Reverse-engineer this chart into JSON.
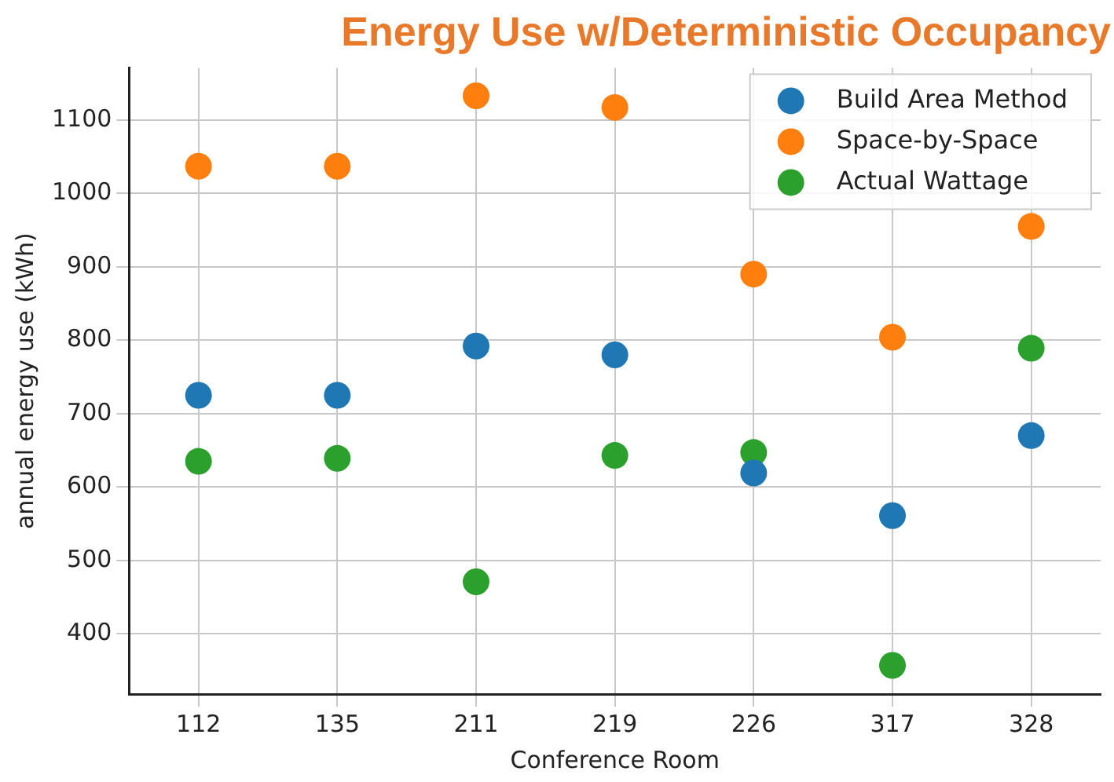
{
  "chart_data": {
    "type": "scatter",
    "title": "Energy Use w/Deterministic Occupancy",
    "xlabel": "Conference Room",
    "ylabel": "annual energy use (kWh)",
    "categories": [
      "112",
      "135",
      "211",
      "219",
      "226",
      "317",
      "328"
    ],
    "series": [
      {
        "name": "Build Area Method",
        "color": "#1f77b4",
        "values": [
          725,
          725,
          792,
          780,
          619,
          561,
          670
        ]
      },
      {
        "name": "Space-by-Space",
        "color": "#ff7f0e",
        "values": [
          1037,
          1037,
          1133,
          1117,
          890,
          804,
          955
        ]
      },
      {
        "name": "Actual Wattage",
        "color": "#2ca02c",
        "values": [
          635,
          639,
          471,
          643,
          647,
          357,
          789
        ]
      }
    ],
    "ylim": [
      318,
      1171
    ],
    "yticks": [
      400,
      500,
      600,
      700,
      800,
      900,
      1000,
      1100
    ],
    "grid": true,
    "legend": "top right",
    "marker": "circle"
  }
}
